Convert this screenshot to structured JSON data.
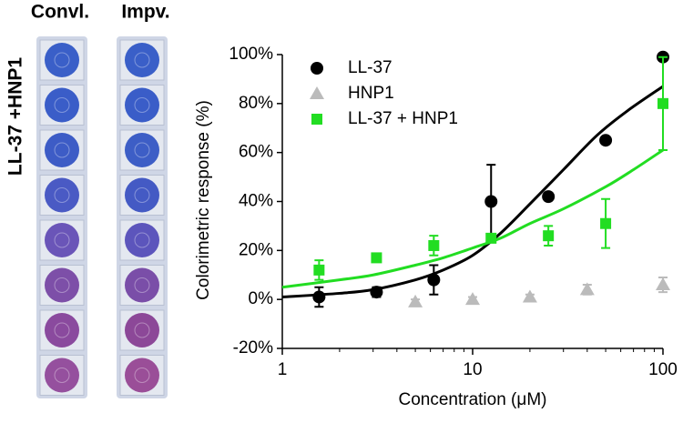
{
  "panel_labels": {
    "left": "Convl.",
    "right": "Impv.",
    "side": "LL-37 +HNP1"
  },
  "chart_data": {
    "type": "scatter",
    "xlabel": "Concentration (μM)",
    "ylabel": "Colorimetric response (%)",
    "xscale": "log",
    "xlim": [
      1,
      100
    ],
    "xticks": [
      1,
      10,
      100
    ],
    "ylim": [
      -20,
      100
    ],
    "yticks": [
      {
        "value": -20,
        "label": "-20%"
      },
      {
        "value": 0,
        "label": "0%"
      },
      {
        "value": 20,
        "label": "20%"
      },
      {
        "value": 40,
        "label": "40%"
      },
      {
        "value": 60,
        "label": "60%"
      },
      {
        "value": 80,
        "label": "80%"
      },
      {
        "value": 100,
        "label": "100%"
      }
    ],
    "legend": "upper left",
    "series": [
      {
        "name": "LL-37",
        "color": "#000000",
        "marker": "circle",
        "x": [
          1.56,
          3.125,
          6.25,
          12.5,
          25,
          50,
          100
        ],
        "values": [
          1,
          3,
          8,
          40,
          42,
          65,
          99
        ],
        "errors": [
          4,
          2,
          6,
          15,
          1,
          1,
          1
        ],
        "fit_x": [
          1,
          2,
          3,
          5,
          7,
          10,
          14,
          20,
          30,
          45,
          65,
          100
        ],
        "fit_values": [
          1,
          2.5,
          4,
          8,
          12,
          18,
          27,
          39,
          53,
          67,
          77,
          87
        ]
      },
      {
        "name": "HNP1",
        "color": "#bbbbbb",
        "marker": "triangle",
        "x": [
          5,
          10,
          20,
          40,
          100
        ],
        "values": [
          -1,
          0,
          1,
          4,
          6
        ],
        "errors": [
          1,
          1,
          1,
          2,
          3
        ]
      },
      {
        "name": "LL-37 + HNP1",
        "color": "#22dd22",
        "marker": "square",
        "x": [
          1.56,
          3.125,
          6.25,
          12.5,
          25,
          50,
          100
        ],
        "values": [
          12,
          17,
          22,
          25,
          26,
          31,
          80
        ],
        "errors": [
          4,
          1,
          4,
          1,
          4,
          10,
          19
        ],
        "fit_x": [
          1,
          2,
          3,
          5,
          7,
          10,
          14,
          20,
          30,
          50,
          70,
          100
        ],
        "fit_values": [
          5,
          8,
          10,
          14,
          17,
          21,
          25,
          31,
          37,
          46,
          53,
          61
        ]
      }
    ]
  }
}
